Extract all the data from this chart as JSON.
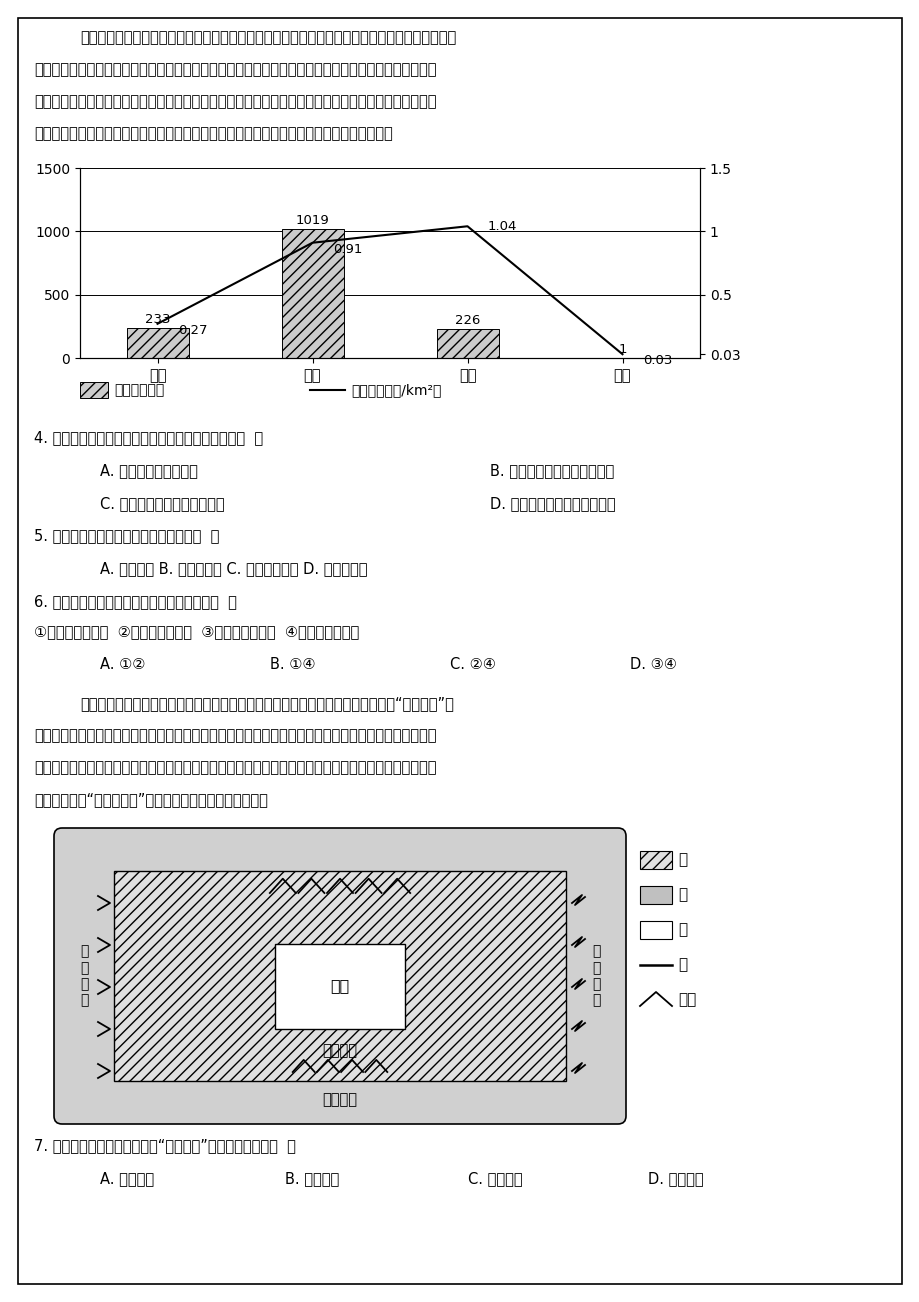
{
  "page_bg": "#ffffff",
  "border_color": "#000000",
  "paragraph1": "地形地貌是崩滑流地质灾害活动的基础，很大程度上决定了崩滑流能否形成以及形成的类型、数量",
  "paragraph2": "（密度）和规模。江西崇义县可划分为构造侵蚀中山、构造侵蚀剥蚀低山、构造侵蚀溶蚀丘陵和侵蚀堆积",
  "paragraph3": "平原四个地貌类型。该县崩塔、滑坡与不稳定斜坡主要发育于低山、丘陵等区域，泥石流主要分布于中山",
  "paragraph4": "区，地面塔陷主要分布于丘陵区。如图为崧义县不同地貌地质灾害分布。据此完成下面小题。",
  "chart": {
    "categories": [
      "中山",
      "低山",
      "丘陵",
      "平原"
    ],
    "bar_values": [
      233,
      1019,
      226,
      1
    ],
    "bar_labels": [
      "233",
      "1019",
      "226",
      "1"
    ],
    "line_values": [
      0.27,
      0.91,
      1.04,
      0.03
    ],
    "line_labels": [
      "0.27",
      "0.91",
      "1.04",
      "0.03"
    ],
    "left_yticks": [
      0,
      500,
      1000,
      1500
    ],
    "right_ytick_labels": [
      "0.03",
      "0.5",
      "1",
      "1.5"
    ],
    "right_ytick_vals": [
      0.03,
      0.5,
      1.0,
      1.5
    ],
    "bar_color": "#cccccc",
    "line_color": "#000000",
    "legend_bar_label": "灾点数（数）",
    "legend_line_label": "灾点密度（处/km²）"
  },
  "q4_text": "4. 关于崧义县不同地貌地质灾害分布说法正确的是（  ）",
  "q4_A": "A. 丘陵区灾点数量最多",
  "q4_B": "B. 平原地区地质灾害为泥石流",
  "q4_C": "C. 中山区不稳定斜坡分布最多",
  "q4_D": "D. 丘陵区的灾点密度数值最大",
  "q5_text": "5. 低山丘陵区的灾点密度较大的原因是（  ）",
  "q5_options": "A. 植被稀少 B. 山体落差大 C. 人类活动密集 D. 岩溨作用强",
  "q6_text": "6. 地面塔陷主要分布在丘陵区的原因可能为（  ）",
  "q6_sub": "①人工抽取地下水  ②地下水溶蚀作用  ③降水季节差异大  ④滑坡泥石流导致",
  "q6_A": "A. ①②",
  "q6_B": "B. ①④",
  "q6_C": "C. ②④",
  "q6_D": "D. ③④",
  "para2_1": "黄土高原地区大量传统村落仍保持了较好的原生村落风景和特色浓郁的建筑风貌，“沉坑藏林”式",
  "para2_2": "传统村落是其中的典型代表之一，该类型传统村落一般位于完整塘面上，临近空间皆为平原耕地，无险可",
  "para2_3": "依、无势可仗，主体窑洞以合院形式下沉于地坑中，下沉式院落之间高林密布，窑院藏于林间，二者浑然",
  "para2_4": "一体。图示意“沉坑藏林式”村落布局，据此完成下面小题。",
  "q7_text": "7. 完整塘面上的传统村落选择“沉坑藏林”式布局的理由是（  ）",
  "q7_A": "A. 仰视风景",
  "q7_B": "B. 生活便利",
  "q7_C": "C. 利于生产",
  "q7_D": "D. 利于避险",
  "diag_label_sink": "沉坑",
  "diag_label_prod": "生产空间",
  "diag_label_eco": "生态空间",
  "diag_label_rock": "基\n岩\n山\n地",
  "diag_label_hill": "黄\n土\n丘\n陵",
  "leg_tian": "田",
  "leg_lin": "林",
  "leg_cun": "村",
  "leg_he": "河",
  "leg_qiuling": "丘陵"
}
